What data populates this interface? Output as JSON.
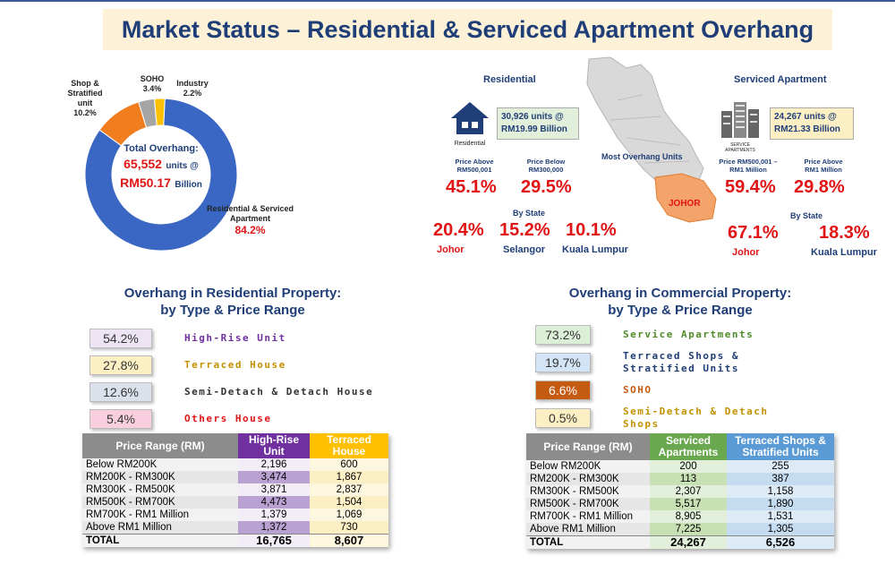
{
  "title": "Market Status – Residential & Serviced Apartment Overhang",
  "donut": {
    "total_label": "Total Overhang:",
    "total_units": "65,552",
    "units_suffix": "units @",
    "total_value": "RM50.17",
    "value_suffix": "Billion",
    "segments": [
      {
        "name_line1": "Residential & Serviced",
        "name_line2": "Apartment",
        "pct": "84.2%",
        "value": 84.2,
        "color": "#3a66c4"
      },
      {
        "name_line1": "Shop & Stratified",
        "name_line2": "unit",
        "pct": "10.2%",
        "value": 10.2,
        "color": "#f07e1e"
      },
      {
        "name_line1": "SOHO",
        "name_line2": "",
        "pct": "3.4%",
        "value": 3.4,
        "color": "#a5a5a5"
      },
      {
        "name_line1": "Industry",
        "name_line2": "",
        "pct": "2.2%",
        "value": 2.2,
        "color": "#ffc000"
      }
    ]
  },
  "residential": {
    "heading": "Residential",
    "icon_label": "Residential",
    "units_text": "30,926 units @",
    "value_text": "RM19.99 Billion",
    "above_label_1": "Price Above",
    "above_label_2": "RM500,001",
    "above_pct": "45.1%",
    "below_label_1": "Price Below",
    "below_label_2": "RM300,000",
    "below_pct": "29.5%",
    "by_state": "By State",
    "states": [
      {
        "pct": "20.4%",
        "name": "Johor"
      },
      {
        "pct": "15.2%",
        "name": "Selangor"
      },
      {
        "pct": "10.1%",
        "name": "Kuala Lumpur"
      }
    ]
  },
  "map": {
    "most_label": "Most Overhang Units",
    "state_label": "JOHOR"
  },
  "serviced": {
    "heading": "Serviced Apartment",
    "icon_label": "SERVICE APARTMENTS",
    "units_text": "24,267 units @",
    "value_text": "RM21.33 Billion",
    "range_label_1": "Price RM500,001 –",
    "range_label_2": "RM1 Million",
    "range_pct": "59.4%",
    "above_label_1": "Price Above",
    "above_label_2": "RM1 Million",
    "above_pct": "29.8%",
    "by_state": "By State",
    "states": [
      {
        "pct": "67.1%",
        "name": "Johor"
      },
      {
        "pct": "18.3%",
        "name": "Kuala Lumpur"
      }
    ]
  },
  "res_section": {
    "title_line1": "Overhang in Residential Property:",
    "title_line2": "by Type & Price Range",
    "legend": [
      {
        "pct": "54.2%",
        "label": "High-Rise Unit",
        "bg": "#ece4f3",
        "fg": "#7030a0"
      },
      {
        "pct": "27.8%",
        "label": "Terraced House",
        "bg": "#fdefc4",
        "fg": "#c39000"
      },
      {
        "pct": "12.6%",
        "label": "Semi-Detach & Detach House",
        "bg": "#dbe1ea",
        "fg": "#333333"
      },
      {
        "pct": "5.4%",
        "label": "Others House",
        "bg": "#f9cfe0",
        "fg": "#e01414"
      }
    ],
    "table": {
      "headers": [
        "Price Range (RM)",
        "High-Rise Unit",
        "Terraced House"
      ],
      "rows": [
        [
          "Below RM200K",
          "2,196",
          "600"
        ],
        [
          "RM200K - RM300K",
          "3,474",
          "1,867"
        ],
        [
          "RM300K - RM500K",
          "3,871",
          "2,837"
        ],
        [
          "RM500K - RM700K",
          "4,473",
          "1,504"
        ],
        [
          "RM700K - RM1 Million",
          "1,379",
          "1,069"
        ],
        [
          "Above RM1 Million",
          "1,372",
          "730"
        ]
      ],
      "total": [
        "TOTAL",
        "16,765",
        "8,607"
      ]
    }
  },
  "com_section": {
    "title_line1": "Overhang in Commercial Property:",
    "title_line2": "by Type & Price Range",
    "legend": [
      {
        "pct": "73.2%",
        "label": "Service Apartments",
        "bg": "#dcefd7",
        "fg": "#4e8a2a"
      },
      {
        "pct": "19.7%",
        "label": "Terraced Shops & Stratified Units",
        "bg": "#d2e4f5",
        "fg": "#1f3e78"
      },
      {
        "pct": "6.6%",
        "label": "SOHO",
        "bg": "#c55a11",
        "fg": "#c55a11"
      },
      {
        "pct": "0.5%",
        "label": "Semi-Detach & Detach Shops",
        "bg": "#fdefc4",
        "fg": "#c39000"
      }
    ],
    "table": {
      "headers": [
        "Price Range (RM)",
        "Serviced Apartments",
        "Terraced Shops & Stratified Units"
      ],
      "rows": [
        [
          "Below RM200K",
          "200",
          "255"
        ],
        [
          "RM200K - RM300K",
          "113",
          "387"
        ],
        [
          "RM300K - RM500K",
          "2,307",
          "1,158"
        ],
        [
          "RM500K - RM700K",
          "5,517",
          "1,890"
        ],
        [
          "RM700K - RM1 Million",
          "8,905",
          "1,531"
        ],
        [
          "Above RM1 Million",
          "7,225",
          "1,305"
        ]
      ],
      "total": [
        "TOTAL",
        "24,267",
        "6,526"
      ]
    }
  }
}
